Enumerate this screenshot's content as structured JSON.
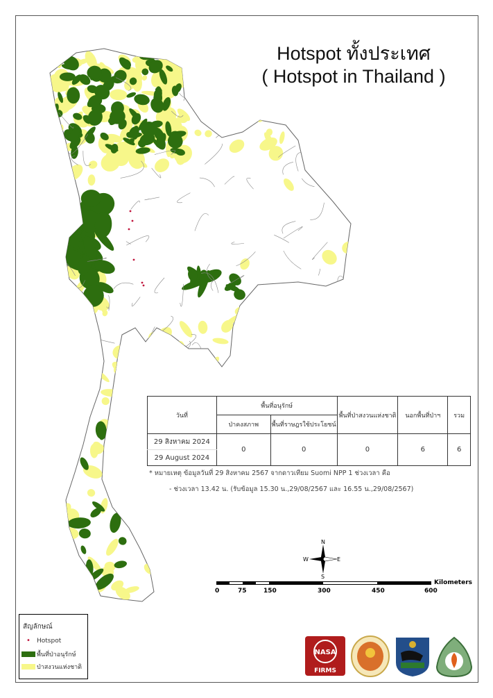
{
  "title": {
    "line1": "Hotspot ทั้งประเทศ",
    "line2": "( Hotspot in Thailand )"
  },
  "table": {
    "headers": {
      "date": "วันที่",
      "conservation": "พื้นที่อนุรักษ์",
      "intact_forest": "ป่าคงสภาพ",
      "community_use": "พื้นที่ราษฎรใช้ประโยชน์",
      "national_reserve": "พื้นที่ป่าสงวนแห่งชาติ",
      "outside_forest": "นอกพื้นที่ป่าฯ",
      "total": "รวม"
    },
    "row": {
      "date_th": "29 สิงหาคม 2024",
      "date_en": "29 August 2024",
      "intact_forest": "0",
      "community_use": "0",
      "national_reserve": "0",
      "outside_forest": "6",
      "total": "6"
    }
  },
  "notes": {
    "line1": "* หมายเหตุ ข้อมูลวันที่ 29 สิงหาคม 2567 จากดาวเทียม Suomi NPP 1 ช่วงเวลา คือ",
    "line2": "- ช่วงเวลา 13.42 น. (รับข้อมูล 15.30 น.,29/08/2567 และ 16.55 น.,29/08/2567)"
  },
  "compass": {
    "n": "N",
    "s": "S",
    "e": "E",
    "w": "W"
  },
  "scale_bar": {
    "ticks": [
      "0",
      "75",
      "150",
      "300",
      "450",
      "600"
    ],
    "unit": "Kilometers"
  },
  "legend": {
    "heading": "สัญลักษณ์",
    "items": [
      {
        "label": "Hotspot",
        "color": "#c0143c",
        "symbol": "dot"
      },
      {
        "label": "พื้นที่ป่าอนุรักษ์",
        "color": "#2d6e0f",
        "symbol": "fill"
      },
      {
        "label": "ป่าสงวนแห่งชาติ",
        "color": "#f7f78a",
        "symbol": "fill"
      }
    ]
  },
  "logos": {
    "nasa": "FIRMS"
  },
  "colors": {
    "conservation": "#2d6e0f",
    "reserve": "#f7f78a",
    "hotspot": "#c0143c",
    "border": "#777777"
  }
}
